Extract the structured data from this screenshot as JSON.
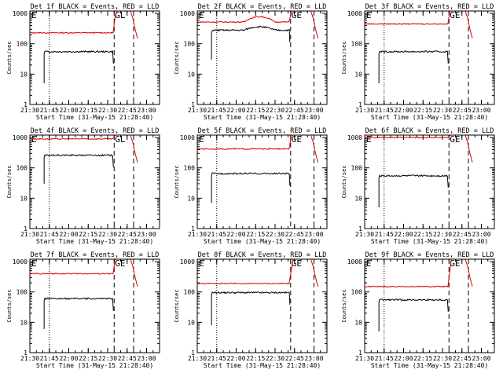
{
  "colors": {
    "events": "#000000",
    "lld": "#dd0000",
    "background": "#ffffff"
  },
  "common": {
    "ylabel": "Counts/sec",
    "xlabel": "Start Time (31-May-15 21:28:40)",
    "x_ticks": [
      "21:30",
      "21:45",
      "22:00",
      "22:15",
      "22:30",
      "22:45",
      "23:00"
    ],
    "y_ticks": [
      "1",
      "10",
      "100",
      "1000"
    ],
    "y_scale": "log",
    "ylim": [
      1,
      1200
    ]
  },
  "chart_data": [
    {
      "type": "line",
      "title": "Det 1f BLACK = Events, RED = LLD",
      "corner_labels": [
        "E",
        "GL"
      ],
      "x_markers": [
        "21:45 (dotted)",
        "22:35 (dashed)",
        "22:50 (dashed)"
      ],
      "series": [
        {
          "name": "Events",
          "y_level": 55,
          "start_level": 5
        },
        {
          "name": "LLD",
          "y_level": 230
        }
      ]
    },
    {
      "type": "line",
      "title": "Det 2f BLACK = Events, RED = LLD",
      "corner_labels": [
        "E",
        "GE"
      ],
      "x_markers": [
        "21:45 (dotted)",
        "22:42 (dashed)",
        "23:00 (dashed)"
      ],
      "series": [
        {
          "name": "Events",
          "y_level": 280,
          "start_level": 30
        },
        {
          "name": "LLD",
          "y_level": 520
        }
      ]
    },
    {
      "type": "line",
      "title": "Det 3f BLACK = Events, RED = LLD",
      "corner_labels": [
        "E",
        "GE"
      ],
      "x_markers": [
        "21:45 (dotted)",
        "22:35 (dashed)",
        "22:50 (dashed)"
      ],
      "series": [
        {
          "name": "Events",
          "y_level": 55,
          "start_level": 5
        },
        {
          "name": "LLD",
          "y_level": 450
        }
      ]
    },
    {
      "type": "line",
      "title": "Det 4f BLACK = Events, RED = LLD",
      "corner_labels": [
        "E",
        "GL"
      ],
      "x_markers": [
        "21:45 (dotted)",
        "22:35 (dashed)",
        "22:50 (dashed)"
      ],
      "series": [
        {
          "name": "Events",
          "y_level": 260,
          "start_level": 30
        },
        {
          "name": "LLD",
          "y_level": 900
        }
      ]
    },
    {
      "type": "line",
      "title": "Det 5f BLACK = Events, RED = LLD",
      "corner_labels": [
        "E",
        "GE"
      ],
      "x_markers": [
        "21:45 (dotted)",
        "22:42 (dashed)",
        "23:00 (dashed)"
      ],
      "series": [
        {
          "name": "Events",
          "y_level": 65,
          "start_level": 7
        },
        {
          "name": "LLD",
          "y_level": 420
        }
      ]
    },
    {
      "type": "line",
      "title": "Det 6f BLACK = Events, RED = LLD",
      "corner_labels": [
        "E",
        "GE"
      ],
      "x_markers": [
        "21:45 (dotted)",
        "22:35 (dashed)",
        "22:50 (dashed)"
      ],
      "series": [
        {
          "name": "Events",
          "y_level": 55,
          "start_level": 5
        },
        {
          "name": "LLD",
          "y_level": 1000
        }
      ]
    },
    {
      "type": "line",
      "title": "Det 7f BLACK = Events, RED = LLD",
      "corner_labels": [
        "E",
        "GE"
      ],
      "x_markers": [
        "21:45 (dotted)",
        "22:35 (dashed)",
        "22:50 (dashed)"
      ],
      "series": [
        {
          "name": "Events",
          "y_level": 60,
          "start_level": 6
        },
        {
          "name": "LLD",
          "y_level": 400
        }
      ]
    },
    {
      "type": "line",
      "title": "Det 8f BLACK = Events, RED = LLD",
      "corner_labels": [
        "E",
        "GE"
      ],
      "x_markers": [
        "21:45 (dotted)",
        "22:42 (dashed)",
        "23:00 (dashed)"
      ],
      "series": [
        {
          "name": "Events",
          "y_level": 95,
          "start_level": 8
        },
        {
          "name": "LLD",
          "y_level": 190
        }
      ]
    },
    {
      "type": "line",
      "title": "Det 9f BLACK = Events, RED = LLD",
      "corner_labels": [
        "E",
        "GE"
      ],
      "x_markers": [
        "21:45 (dotted)",
        "22:35 (dashed)",
        "22:50 (dashed)"
      ],
      "series": [
        {
          "name": "Events",
          "y_level": 55,
          "start_level": 5
        },
        {
          "name": "LLD",
          "y_level": 150
        }
      ]
    }
  ]
}
